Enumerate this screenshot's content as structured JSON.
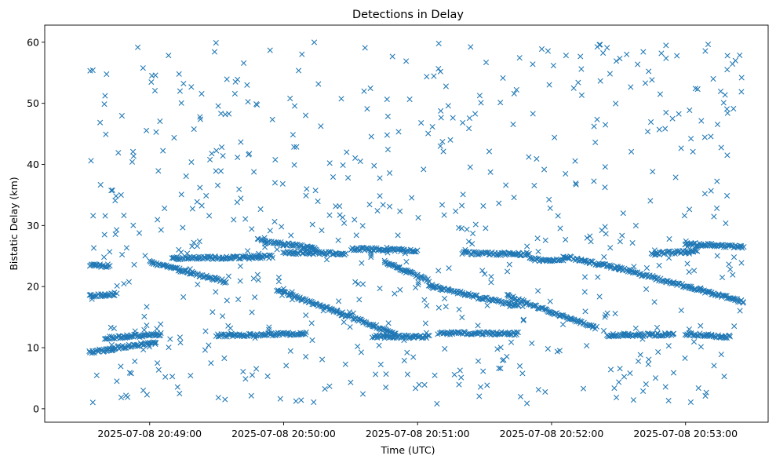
{
  "chart_data": {
    "type": "scatter",
    "title": "Detections in Delay",
    "xlabel": "Time (UTC)",
    "ylabel": "Bistatic Delay (km)",
    "marker": "x",
    "color": "#1f77b4",
    "grid": false,
    "legend": "none",
    "x_range": [
      "2025-07-08 20:48:13",
      "2025-07-08 20:53:37"
    ],
    "ylim": [
      -2.2,
      62.8
    ],
    "x_ticks": [
      "2025-07-08 20:49:00",
      "2025-07-08 20:50:00",
      "2025-07-08 20:51:00",
      "2025-07-08 20:52:00",
      "2025-07-08 20:53:00"
    ],
    "y_ticks": [
      0,
      10,
      20,
      30,
      40,
      50,
      60
    ],
    "time_start": "2025-07-08 20:48:33",
    "time_end": "2025-07-08 20:53:26",
    "tracks": [
      {
        "t": [
          "20:48:33",
          "20:48:45"
        ],
        "delay": [
          9.3,
          9.8
        ]
      },
      {
        "t": [
          "20:48:40",
          "20:49:05"
        ],
        "delay": [
          11.6,
          12.2
        ]
      },
      {
        "t": [
          "20:48:33",
          "20:48:45"
        ],
        "delay": [
          18.4,
          18.8
        ]
      },
      {
        "t": [
          "20:48:33",
          "20:48:42"
        ],
        "delay": [
          23.5,
          23.4
        ]
      },
      {
        "t": [
          "20:48:45",
          "20:49:03"
        ],
        "delay": [
          10.0,
          10.8
        ]
      },
      {
        "t": [
          "20:49:00",
          "20:49:34"
        ],
        "delay": [
          24.0,
          20.8
        ]
      },
      {
        "t": [
          "20:49:10",
          "20:49:55"
        ],
        "delay": [
          24.6,
          24.9
        ]
      },
      {
        "t": [
          "20:49:30",
          "20:50:10"
        ],
        "delay": [
          12.0,
          12.3
        ]
      },
      {
        "t": [
          "20:50:00",
          "20:50:28"
        ],
        "delay": [
          25.6,
          25.4
        ]
      },
      {
        "t": [
          "20:49:50",
          "20:50:15"
        ],
        "delay": [
          27.5,
          26.2
        ]
      },
      {
        "t": [
          "20:49:57",
          "20:50:50"
        ],
        "delay": [
          19.5,
          12.3
        ]
      },
      {
        "t": [
          "20:50:30",
          "20:51:00"
        ],
        "delay": [
          26.2,
          25.9
        ]
      },
      {
        "t": [
          "20:50:40",
          "20:51:05"
        ],
        "delay": [
          11.8,
          11.8
        ]
      },
      {
        "t": [
          "20:50:45",
          "20:51:05"
        ],
        "delay": [
          24.0,
          21.0
        ]
      },
      {
        "t": [
          "20:51:10",
          "20:51:45"
        ],
        "delay": [
          12.4,
          12.3
        ]
      },
      {
        "t": [
          "20:51:05",
          "20:51:45"
        ],
        "delay": [
          20.2,
          16.8
        ]
      },
      {
        "t": [
          "20:51:20",
          "20:51:50"
        ],
        "delay": [
          25.5,
          25.3
        ]
      },
      {
        "t": [
          "20:51:40",
          "20:52:20"
        ],
        "delay": [
          18.5,
          13.2
        ]
      },
      {
        "t": [
          "20:51:50",
          "20:52:05"
        ],
        "delay": [
          24.5,
          24.2
        ]
      },
      {
        "t": [
          "20:52:05",
          "20:52:30"
        ],
        "delay": [
          25.0,
          23.0
        ]
      },
      {
        "t": [
          "20:52:25",
          "20:52:55"
        ],
        "delay": [
          12.0,
          12.2
        ]
      },
      {
        "t": [
          "20:52:30",
          "20:53:26"
        ],
        "delay": [
          23.0,
          17.5
        ]
      },
      {
        "t": [
          "20:53:00",
          "20:53:26"
        ],
        "delay": [
          27.0,
          26.5
        ]
      },
      {
        "t": [
          "20:52:45",
          "20:53:05"
        ],
        "delay": [
          25.4,
          25.8
        ]
      },
      {
        "t": [
          "20:53:00",
          "20:53:20"
        ],
        "delay": [
          12.2,
          11.8
        ]
      }
    ],
    "clutter": {
      "delay_range": [
        0.5,
        60
      ],
      "count": 650
    }
  }
}
